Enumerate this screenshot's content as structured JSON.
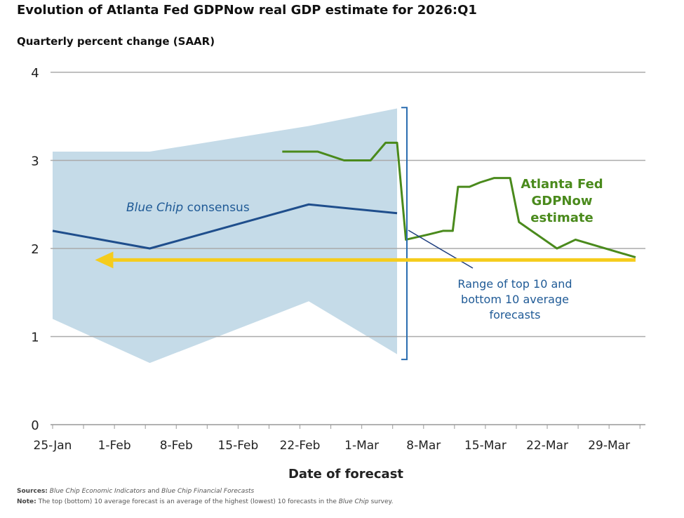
{
  "chart_data": {
    "type": "line",
    "title": "Evolution of Atlanta Fed GDPNow real GDP estimate for 2026:Q1",
    "subtitle": "Quarterly percent change (SAAR)",
    "xlabel": "Date of forecast",
    "x_unit": "days since 25-Jan",
    "xlim": [
      0,
      70
    ],
    "ylim": [
      0,
      4
    ],
    "yticks": [
      "0",
      "1",
      "2",
      "3",
      "4"
    ],
    "xticks": [
      {
        "day": 0,
        "label": "25-Jan"
      },
      {
        "day": 7,
        "label": "1-Feb"
      },
      {
        "day": 14,
        "label": "8-Feb"
      },
      {
        "day": 21,
        "label": "15-Feb"
      },
      {
        "day": 28,
        "label": "22-Feb"
      },
      {
        "day": 35,
        "label": "1-Mar"
      },
      {
        "day": 42,
        "label": "8-Mar"
      },
      {
        "day": 49,
        "label": "15-Mar"
      },
      {
        "day": 56,
        "label": "22-Mar"
      },
      {
        "day": 63,
        "label": "29-Mar"
      }
    ],
    "grid": true,
    "series": [
      {
        "name": "Blue Chip consensus",
        "color": "#1f4e8c",
        "x": [
          0,
          11,
          29,
          39
        ],
        "y": [
          2.2,
          2.0,
          2.5,
          2.4
        ]
      },
      {
        "name": "Atlanta Fed GDPNow estimate",
        "color": "#4a8a1c",
        "x": [
          26,
          30,
          33,
          36,
          37.7,
          39,
          40,
          42.6,
          44.2,
          45.3,
          45.9,
          47.2,
          48.4,
          50,
          51.8,
          52.8,
          57.1,
          59.2,
          66
        ],
        "y": [
          3.1,
          3.1,
          3.0,
          3.0,
          3.2,
          3.2,
          2.1,
          2.16,
          2.2,
          2.2,
          2.7,
          2.7,
          2.75,
          2.8,
          2.8,
          2.3,
          2.0,
          2.1,
          1.9
        ]
      }
    ],
    "band": {
      "name": "Range of top 10 and bottom 10 average forecasts",
      "color": "#c5dbe8",
      "x": [
        0,
        11,
        29,
        39
      ],
      "upper": [
        3.1,
        3.1,
        3.39,
        3.59
      ],
      "lower": [
        1.2,
        0.7,
        1.4,
        0.8
      ]
    },
    "arrow": {
      "color": "#f5cc1c",
      "y": 1.87,
      "from": 66,
      "to": 4.8
    },
    "annotations": {
      "consensus_italic": "Blue Chip",
      "consensus_rest": " consensus",
      "gdpnow": [
        "Atlanta Fed",
        "GDPNow",
        "estimate"
      ],
      "range": [
        "Range of top 10 and",
        "bottom 10 average",
        "forecasts"
      ]
    }
  },
  "footer": {
    "sources_label": "Sources:",
    "sources_1": "Blue Chip Economic Indicators",
    "sources_and": " and ",
    "sources_2": "Blue Chip Financial Forecasts",
    "note_label": "Note:",
    "note_1": " The top (bottom) 10 average forecast is an average of the highest (lowest) 10 forecasts in the ",
    "note_italic": "Blue Chip",
    "note_2": " survey."
  }
}
